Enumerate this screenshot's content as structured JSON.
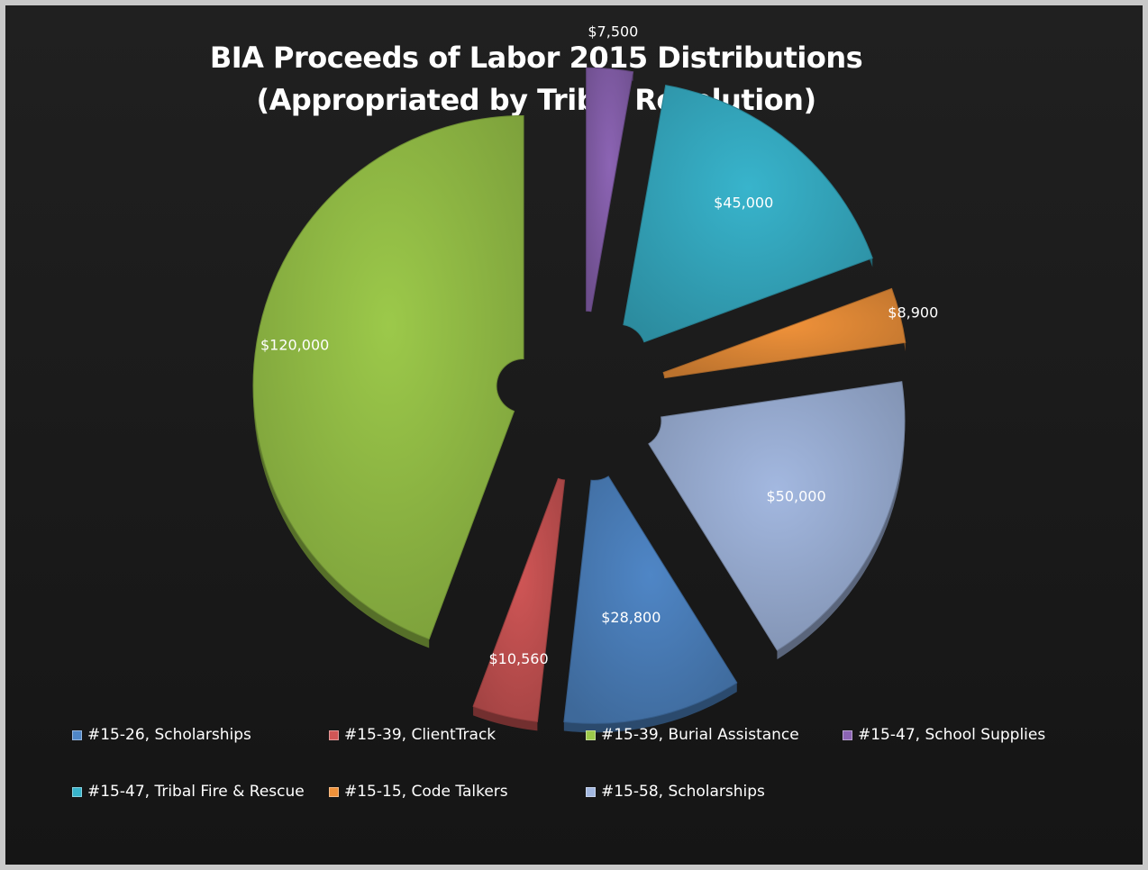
{
  "chart_data": {
    "type": "pie",
    "title": "BIA Proceeds of Labor 2015 Distributions",
    "subtitle": "(Appropriated by Tribal Resolution)",
    "legend_position": "bottom",
    "slices": [
      {
        "label": "#15-26, Scholarships",
        "value": 28800,
        "data_label": "$28,800",
        "color": "#4f86c6"
      },
      {
        "label": "#15-39, ClientTrack",
        "value": 10560,
        "data_label": "$10,560",
        "color": "#d05656"
      },
      {
        "label": "#15-39, Burial Assistance",
        "value": 120000,
        "data_label": "$120,000",
        "color": "#9cc94a"
      },
      {
        "label": "#15-47, School Supplies",
        "value": 7500,
        "data_label": "$7,500",
        "color": "#8c64b4"
      },
      {
        "label": "#15-47, Tribal Fire & Rescue",
        "value": 45000,
        "data_label": "$45,000",
        "color": "#38b4cc"
      },
      {
        "label": "#15-15, Code Talkers",
        "value": 8900,
        "data_label": "$8,900",
        "color": "#f0923a"
      },
      {
        "label": "#15-58, Scholarships",
        "value": 50000,
        "data_label": "$50,000",
        "color": "#a3b8e0"
      }
    ]
  }
}
